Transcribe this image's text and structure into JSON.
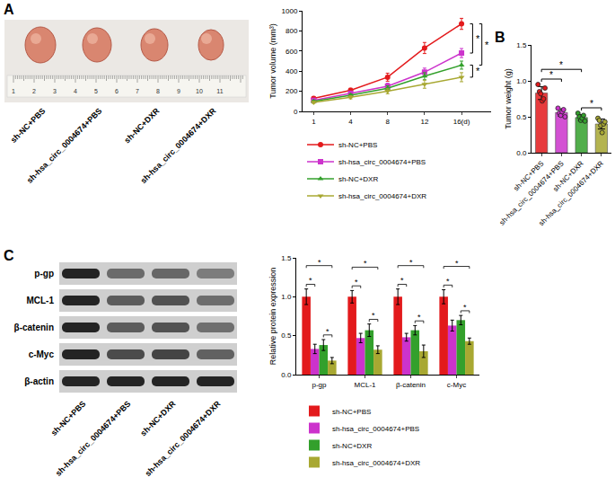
{
  "panel_labels": [
    "A",
    "B",
    "C"
  ],
  "tumor_photo": {
    "groups": [
      "sh-NC+PBS",
      "sh-hsa_circ_0004674+PBS",
      "sh-NC+DXR",
      "sh-hsa_circ_0004674+DXR"
    ],
    "ruler_labels": [
      "1",
      "2",
      "3",
      "4",
      "5",
      "6",
      "7",
      "8",
      "9",
      "10",
      "11"
    ]
  },
  "western_blot": {
    "proteins": [
      "p-gp",
      "MCL-1",
      "β-catenin",
      "c-Myc",
      "β-actin"
    ],
    "lanes": [
      "sh-NC+PBS",
      "sh-hsa_circ_0004674+PBS",
      "sh-NC+DXR",
      "sh-hsa_circ_0004674+DXR"
    ]
  },
  "chart_data": [
    {
      "type": "line",
      "y_label": "Tumor volume (mm³)",
      "categories": [
        "1",
        "4",
        "8",
        "12",
        "16(d)"
      ],
      "ylim": [
        0,
        1000
      ],
      "yticks": [
        0,
        200,
        400,
        600,
        800,
        1000
      ],
      "grid": false,
      "legend": "bottom",
      "series": [
        {
          "name": "sh-NC+PBS",
          "color": "#e31a1c",
          "marker": "circle",
          "values": [
            130,
            210,
            340,
            630,
            870
          ],
          "errors": [
            15,
            20,
            40,
            55,
            55
          ]
        },
        {
          "name": "sh-hsa_circ_0004674+PBS",
          "color": "#cc33cc",
          "marker": "square",
          "values": [
            110,
            180,
            250,
            390,
            580
          ],
          "errors": [
            12,
            18,
            30,
            40,
            45
          ]
        },
        {
          "name": "sh-NC+DXR",
          "color": "#33a02c",
          "marker": "triangle-up",
          "values": [
            100,
            160,
            230,
            350,
            460
          ],
          "errors": [
            10,
            15,
            25,
            35,
            40
          ]
        },
        {
          "name": "sh-hsa_circ_0004674+DXR",
          "color": "#a8a832",
          "marker": "triangle-down",
          "values": [
            90,
            140,
            200,
            270,
            340
          ],
          "errors": [
            10,
            15,
            25,
            40,
            45
          ]
        }
      ],
      "annotations": [
        {
          "text": "*",
          "between": [
            "sh-NC+PBS",
            "sh-hsa_circ_0004674+PBS"
          ]
        },
        {
          "text": "*",
          "between": [
            "sh-NC+PBS",
            "sh-NC+DXR"
          ]
        },
        {
          "text": "*",
          "between": [
            "sh-NC+DXR",
            "sh-hsa_circ_0004674+DXR"
          ]
        }
      ]
    },
    {
      "type": "bar",
      "y_label": "Tumor weight (g)",
      "categories": [
        "sh-NC+PBS",
        "sh-hsa_circ_0004674+PBS",
        "sh-NC+DXR",
        "sh-hsa_circ_0004674+DXR"
      ],
      "colors": [
        "#e31a1c",
        "#cc33cc",
        "#33a02c",
        "#a8a832"
      ],
      "values": [
        0.83,
        0.56,
        0.49,
        0.4
      ],
      "errors": [
        0.09,
        0.05,
        0.04,
        0.07
      ],
      "points": [
        [
          0.95,
          0.85,
          0.82,
          0.72,
          0.75,
          0.9
        ],
        [
          0.62,
          0.55,
          0.52,
          0.57,
          0.6,
          0.5
        ],
        [
          0.55,
          0.5,
          0.45,
          0.48,
          0.52,
          0.44
        ],
        [
          0.48,
          0.45,
          0.38,
          0.28,
          0.4,
          0.43
        ]
      ],
      "ylim": [
        0,
        1.5
      ],
      "yticks": [
        {
          "value": 0,
          "label": "0.0"
        },
        0.5,
        {
          "value": 1,
          "label": "1.0"
        },
        1.5
      ],
      "grid": false,
      "annotations": [
        {
          "text": "*",
          "between": [
            "sh-NC+PBS",
            "sh-hsa_circ_0004674+PBS"
          ]
        },
        {
          "text": "*",
          "between": [
            "sh-NC+PBS",
            "sh-NC+DXR"
          ]
        },
        {
          "text": "*",
          "between": [
            "sh-NC+DXR",
            "sh-hsa_circ_0004674+DXR"
          ]
        }
      ]
    },
    {
      "type": "bar",
      "y_label": "Relative protein expression",
      "categories": [
        "p-gp",
        "MCL-1",
        "β-catenin",
        "c-Myc"
      ],
      "ylim": [
        0,
        1.5
      ],
      "yticks": [
        {
          "value": 0,
          "label": "0.0"
        },
        0.5,
        {
          "value": 1,
          "label": "1.0"
        },
        1.5
      ],
      "grid": false,
      "legend": "bottom",
      "series": [
        {
          "name": "sh-NC+PBS",
          "color": "#e31a1c",
          "values": [
            1.0,
            1.0,
            1.0,
            1.0
          ],
          "errors": [
            0.1,
            0.08,
            0.1,
            0.09
          ]
        },
        {
          "name": "sh-hsa_circ_0004674+PBS",
          "color": "#cc33cc",
          "values": [
            0.33,
            0.47,
            0.48,
            0.63
          ],
          "errors": [
            0.06,
            0.06,
            0.05,
            0.07
          ]
        },
        {
          "name": "sh-NC+DXR",
          "color": "#33a02c",
          "values": [
            0.38,
            0.57,
            0.57,
            0.7
          ],
          "errors": [
            0.07,
            0.08,
            0.06,
            0.06
          ]
        },
        {
          "name": "sh-hsa_circ_0004674+DXR",
          "color": "#a8a832",
          "values": [
            0.18,
            0.32,
            0.3,
            0.43
          ],
          "errors": [
            0.04,
            0.05,
            0.08,
            0.04
          ]
        }
      ],
      "annotations": [
        {
          "text": "*",
          "category": "p-gp",
          "between": [
            "sh-NC+PBS",
            "sh-hsa_circ_0004674+DXR"
          ]
        },
        {
          "text": "*",
          "category": "p-gp",
          "between": [
            "sh-NC+PBS",
            "sh-hsa_circ_0004674+PBS"
          ]
        },
        {
          "text": "*",
          "category": "p-gp",
          "between": [
            "sh-NC+DXR",
            "sh-hsa_circ_0004674+DXR"
          ]
        },
        {
          "text": "*",
          "category": "MCL-1",
          "between": [
            "sh-NC+PBS",
            "sh-hsa_circ_0004674+DXR"
          ]
        },
        {
          "text": "*",
          "category": "MCL-1",
          "between": [
            "sh-NC+PBS",
            "sh-hsa_circ_0004674+PBS"
          ]
        },
        {
          "text": "*",
          "category": "MCL-1",
          "between": [
            "sh-NC+DXR",
            "sh-hsa_circ_0004674+DXR"
          ]
        },
        {
          "text": "*",
          "category": "β-catenin",
          "between": [
            "sh-NC+PBS",
            "sh-hsa_circ_0004674+DXR"
          ]
        },
        {
          "text": "*",
          "category": "β-catenin",
          "between": [
            "sh-NC+PBS",
            "sh-hsa_circ_0004674+PBS"
          ]
        },
        {
          "text": "*",
          "category": "β-catenin",
          "between": [
            "sh-NC+DXR",
            "sh-hsa_circ_0004674+DXR"
          ]
        },
        {
          "text": "*",
          "category": "c-Myc",
          "between": [
            "sh-NC+PBS",
            "sh-hsa_circ_0004674+DXR"
          ]
        },
        {
          "text": "*",
          "category": "c-Myc",
          "between": [
            "sh-NC+PBS",
            "sh-hsa_circ_0004674+PBS"
          ]
        },
        {
          "text": "*",
          "category": "c-Myc",
          "between": [
            "sh-NC+DXR",
            "sh-hsa_circ_0004674+DXR"
          ]
        }
      ]
    }
  ]
}
